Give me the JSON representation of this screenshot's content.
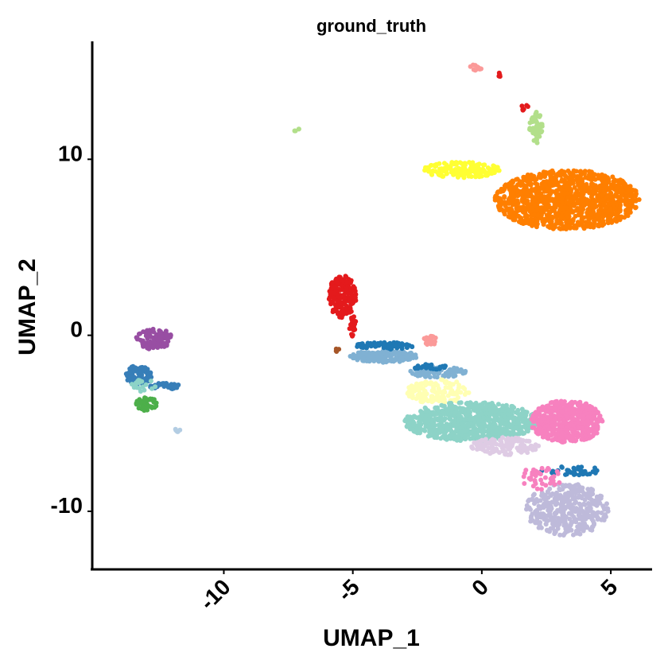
{
  "chart_data": {
    "type": "scatter",
    "title": "ground_truth",
    "xlabel": "UMAP_1",
    "ylabel": "UMAP_2",
    "xlim": [
      -15.1,
      6.6
    ],
    "ylim": [
      -13.3,
      16.7
    ],
    "x_ticks": [
      {
        "value": -10,
        "label": "-10"
      },
      {
        "value": -5,
        "label": "-5"
      },
      {
        "value": 0,
        "label": "0"
      },
      {
        "value": 5,
        "label": "5"
      }
    ],
    "y_ticks": [
      {
        "value": 10,
        "label": "10"
      },
      {
        "value": 0,
        "label": "0"
      },
      {
        "value": -10,
        "label": "-10"
      }
    ],
    "grid": false,
    "legend": "none",
    "clusters": [
      {
        "color": "#FF7F00",
        "cx": 3.3,
        "cy": 7.7,
        "rx": 2.8,
        "ry": 1.7,
        "n": 1100
      },
      {
        "color": "#FFFF33",
        "cx": -0.8,
        "cy": 9.4,
        "rx": 1.5,
        "ry": 0.45,
        "n": 150
      },
      {
        "color": "#B2DF8A",
        "cx": 2.1,
        "cy": 11.8,
        "rx": 0.25,
        "ry": 0.9,
        "n": 50
      },
      {
        "color": "#FB9A99",
        "cx": -0.25,
        "cy": 15.2,
        "rx": 0.25,
        "ry": 0.25,
        "n": 12
      },
      {
        "color": "#E31A1C",
        "cx": 0.65,
        "cy": 14.8,
        "rx": 0.12,
        "ry": 0.12,
        "n": 5
      },
      {
        "color": "#E31A1C",
        "cx": 1.65,
        "cy": 13.0,
        "rx": 0.15,
        "ry": 0.25,
        "n": 6
      },
      {
        "color": "#B2DF8A",
        "cx": -7.2,
        "cy": 11.7,
        "rx": 0.12,
        "ry": 0.1,
        "n": 5
      },
      {
        "color": "#E41A1C",
        "cx": -5.4,
        "cy": 2.2,
        "rx": 0.55,
        "ry": 1.2,
        "n": 160
      },
      {
        "color": "#E41A1C",
        "cx": -5.0,
        "cy": 0.5,
        "rx": 0.15,
        "ry": 0.6,
        "n": 20
      },
      {
        "color": "#80B1D3",
        "cx": -3.8,
        "cy": -1.2,
        "rx": 1.3,
        "ry": 0.35,
        "n": 180
      },
      {
        "color": "#80B1D3",
        "cx": -1.7,
        "cy": -2.1,
        "rx": 1.1,
        "ry": 0.3,
        "n": 90
      },
      {
        "color": "#1F78B4",
        "cx": -3.7,
        "cy": -0.6,
        "rx": 1.2,
        "ry": 0.2,
        "n": 70
      },
      {
        "color": "#1F78B4",
        "cx": -2.0,
        "cy": -1.8,
        "rx": 0.7,
        "ry": 0.15,
        "n": 30
      },
      {
        "color": "#FB9A99",
        "cx": -2.0,
        "cy": -0.3,
        "rx": 0.3,
        "ry": 0.25,
        "n": 25
      },
      {
        "color": "#A65628",
        "cx": -5.6,
        "cy": -0.8,
        "rx": 0.1,
        "ry": 0.15,
        "n": 5
      },
      {
        "color": "#FFFFB3",
        "cx": -1.7,
        "cy": -3.2,
        "rx": 1.2,
        "ry": 0.7,
        "n": 140
      },
      {
        "color": "#8DD3C7",
        "cx": -0.4,
        "cy": -4.9,
        "rx": 2.6,
        "ry": 1.1,
        "n": 800
      },
      {
        "color": "#F781BF",
        "cx": 3.3,
        "cy": -4.9,
        "rx": 1.4,
        "ry": 1.2,
        "n": 500
      },
      {
        "color": "#DECBE4",
        "cx": 0.9,
        "cy": -6.3,
        "rx": 1.3,
        "ry": 0.5,
        "n": 130
      },
      {
        "color": "#BEBADA",
        "cx": 3.3,
        "cy": -9.9,
        "rx": 1.6,
        "ry": 1.5,
        "n": 380
      },
      {
        "color": "#1F78B4",
        "cx": 3.4,
        "cy": -7.7,
        "rx": 1.3,
        "ry": 0.25,
        "n": 40
      },
      {
        "color": "#F781BF",
        "cx": 2.3,
        "cy": -8.1,
        "rx": 0.8,
        "ry": 0.7,
        "n": 40
      },
      {
        "color": "#984EA3",
        "cx": -12.7,
        "cy": -0.2,
        "rx": 0.7,
        "ry": 0.6,
        "n": 110
      },
      {
        "color": "#377EB8",
        "cx": -13.3,
        "cy": -2.3,
        "rx": 0.5,
        "ry": 0.6,
        "n": 100
      },
      {
        "color": "#377EB8",
        "cx": -12.3,
        "cy": -2.9,
        "rx": 0.6,
        "ry": 0.2,
        "n": 50
      },
      {
        "color": "#4DAF4A",
        "cx": -13.0,
        "cy": -3.9,
        "rx": 0.4,
        "ry": 0.4,
        "n": 50
      },
      {
        "color": "#8DD3C7",
        "cx": -13.1,
        "cy": -2.9,
        "rx": 0.5,
        "ry": 0.4,
        "n": 20
      },
      {
        "color": "#B3CDE3",
        "cx": -11.8,
        "cy": -5.4,
        "rx": 0.1,
        "ry": 0.1,
        "n": 5
      }
    ]
  }
}
